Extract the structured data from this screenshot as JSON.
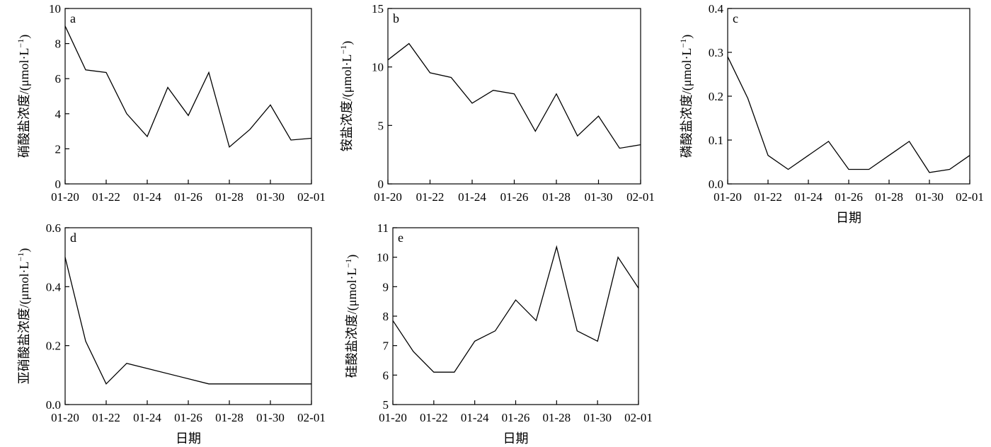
{
  "figure": {
    "y_unit": "(μmol·L",
    "y_unit_sup": "−1",
    "y_unit_close": ")"
  },
  "chart_data": [
    {
      "panel": "a",
      "type": "line",
      "ylabel": "硝酸盐浓度/",
      "xlabel": "",
      "ylim": [
        0,
        10
      ],
      "yticks": [
        0,
        2,
        4,
        6,
        8,
        10
      ],
      "xticks": [
        "01-20",
        "01-22",
        "01-24",
        "01-26",
        "01-28",
        "01-30",
        "02-01"
      ],
      "x": [
        "01-20",
        "01-21",
        "01-22",
        "01-23",
        "01-24",
        "01-25",
        "01-26",
        "01-27",
        "01-28",
        "01-29",
        "01-30",
        "01-31",
        "02-01"
      ],
      "values": [
        9.0,
        6.5,
        6.35,
        4.0,
        2.7,
        5.5,
        3.9,
        6.35,
        2.1,
        3.1,
        4.5,
        2.5,
        2.6
      ]
    },
    {
      "panel": "b",
      "type": "line",
      "ylabel": "铵盐浓度/",
      "xlabel": "",
      "ylim": [
        0,
        15
      ],
      "yticks": [
        0,
        5,
        10,
        15
      ],
      "xticks": [
        "01-20",
        "01-22",
        "01-24",
        "01-26",
        "01-28",
        "01-30",
        "02-01"
      ],
      "x": [
        "01-20",
        "01-21",
        "01-22",
        "01-23",
        "01-24",
        "01-25",
        "01-26",
        "01-27",
        "01-28",
        "01-29",
        "01-30",
        "01-31",
        "02-01"
      ],
      "values": [
        10.6,
        12.0,
        9.5,
        9.1,
        6.9,
        8.0,
        7.7,
        4.5,
        7.7,
        4.1,
        5.8,
        3.05,
        3.35
      ]
    },
    {
      "panel": "c",
      "type": "line",
      "ylabel": "磷酸盐浓度/",
      "xlabel": "日期",
      "ylim": [
        0,
        0.4
      ],
      "yticks": [
        "0.0",
        "0.1",
        "0.2",
        "0.3",
        "0.4"
      ],
      "xticks": [
        "01-20",
        "01-22",
        "01-24",
        "01-26",
        "01-28",
        "01-30",
        "02-01"
      ],
      "x": [
        "01-20",
        "01-21",
        "01-22",
        "01-23",
        "01-24",
        "01-25",
        "01-26",
        "01-27",
        "01-28",
        "01-29",
        "01-30",
        "01-31",
        "02-01"
      ],
      "values": [
        0.29,
        0.195,
        0.065,
        0.033,
        0.065,
        0.097,
        0.033,
        0.033,
        0.065,
        0.097,
        0.026,
        0.033,
        0.065
      ]
    },
    {
      "panel": "d",
      "type": "line",
      "ylabel": "亚硝酸盐浓度/",
      "xlabel": "日期",
      "ylim": [
        0,
        0.6
      ],
      "yticks": [
        "0.0",
        "0.2",
        "0.4",
        "0.6"
      ],
      "xticks": [
        "01-20",
        "01-22",
        "01-24",
        "01-26",
        "01-28",
        "01-30",
        "02-01"
      ],
      "x": [
        "01-20",
        "01-21",
        "01-22",
        "01-23",
        "01-27",
        "01-28",
        "01-29",
        "01-30",
        "01-31",
        "02-01"
      ],
      "values": [
        0.5,
        0.215,
        0.07,
        0.14,
        0.07,
        0.07,
        0.07,
        0.07,
        0.07,
        0.07
      ]
    },
    {
      "panel": "e",
      "type": "line",
      "ylabel": "硅酸盐浓度/",
      "xlabel": "日期",
      "ylim": [
        5,
        11
      ],
      "yticks": [
        5,
        6,
        7,
        8,
        9,
        10,
        11
      ],
      "xticks": [
        "01-20",
        "01-22",
        "01-24",
        "01-26",
        "01-28",
        "01-30",
        "02-01"
      ],
      "x": [
        "01-20",
        "01-21",
        "01-22",
        "01-23",
        "01-24",
        "01-25",
        "01-26",
        "01-27",
        "01-28",
        "01-29",
        "01-30",
        "01-31",
        "02-01"
      ],
      "values": [
        7.85,
        6.8,
        6.1,
        6.1,
        7.15,
        7.5,
        8.55,
        7.85,
        10.35,
        7.5,
        7.15,
        10.0,
        8.95
      ]
    }
  ]
}
